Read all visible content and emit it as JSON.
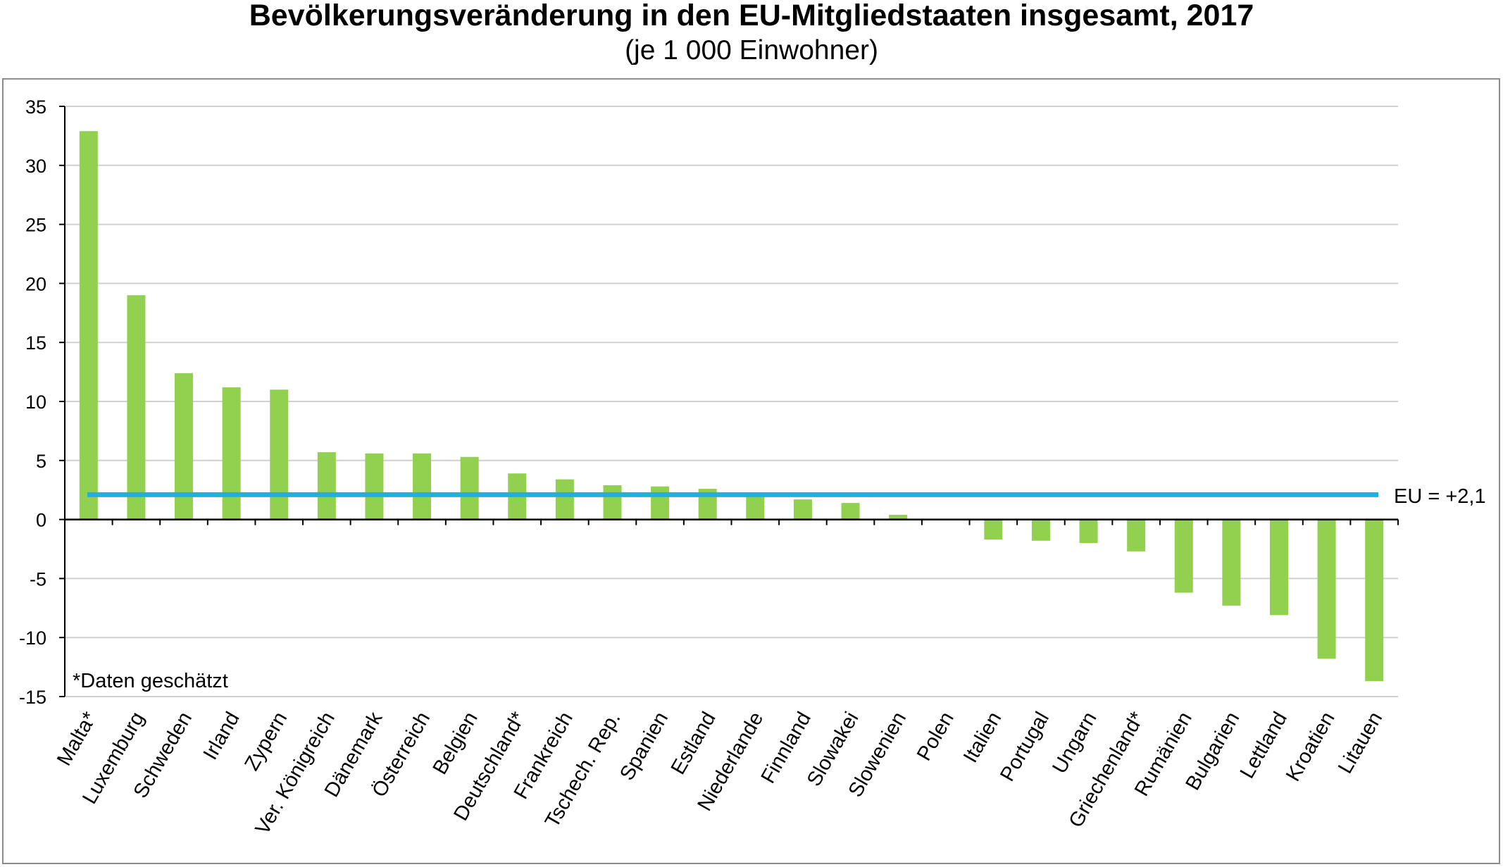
{
  "chart_data": {
    "type": "bar",
    "title": "Bevölkerungsveränderung in den EU-Mitgliedstaaten insgesamt, 2017",
    "subtitle": "(je 1 000 Einwohner)",
    "xlabel": "",
    "ylabel": "",
    "ylim": [
      -15,
      35
    ],
    "yticks": [
      35,
      30,
      25,
      20,
      15,
      10,
      5,
      0,
      -5,
      -10,
      -15
    ],
    "grid": true,
    "categories": [
      "Malta*",
      "Luxemburg",
      "Schweden",
      "Irland",
      "Zypern",
      "Ver. Königreich",
      "Dänemark",
      "Österreich",
      "Belgien",
      "Deutschland*",
      "Frankreich",
      "Tschech. Rep.",
      "Spanien",
      "Estland",
      "Niederlande",
      "Finnland",
      "Slowakei",
      "Slowenien",
      "Polen",
      "Italien",
      "Portugal",
      "Ungarn",
      "Griechenland*",
      "Rumänien",
      "Bulgarien",
      "Lettland",
      "Kroatien",
      "Litauen"
    ],
    "values": [
      32.9,
      19.0,
      12.4,
      11.2,
      11.0,
      5.7,
      5.6,
      5.6,
      5.3,
      3.9,
      3.4,
      2.9,
      2.8,
      2.6,
      2.1,
      1.7,
      1.4,
      0.4,
      0.0,
      -1.7,
      -1.8,
      -2.0,
      -2.7,
      -6.2,
      -7.3,
      -8.1,
      -11.8,
      -13.7
    ],
    "reference_line": {
      "value": 2.1,
      "label": "EU = +2,1"
    },
    "note": "*Daten geschätzt",
    "colors": {
      "bar": "#92d050",
      "reference_line": "#1fb0e0",
      "grid": "#d0d0d0",
      "axis": "#000000"
    }
  }
}
